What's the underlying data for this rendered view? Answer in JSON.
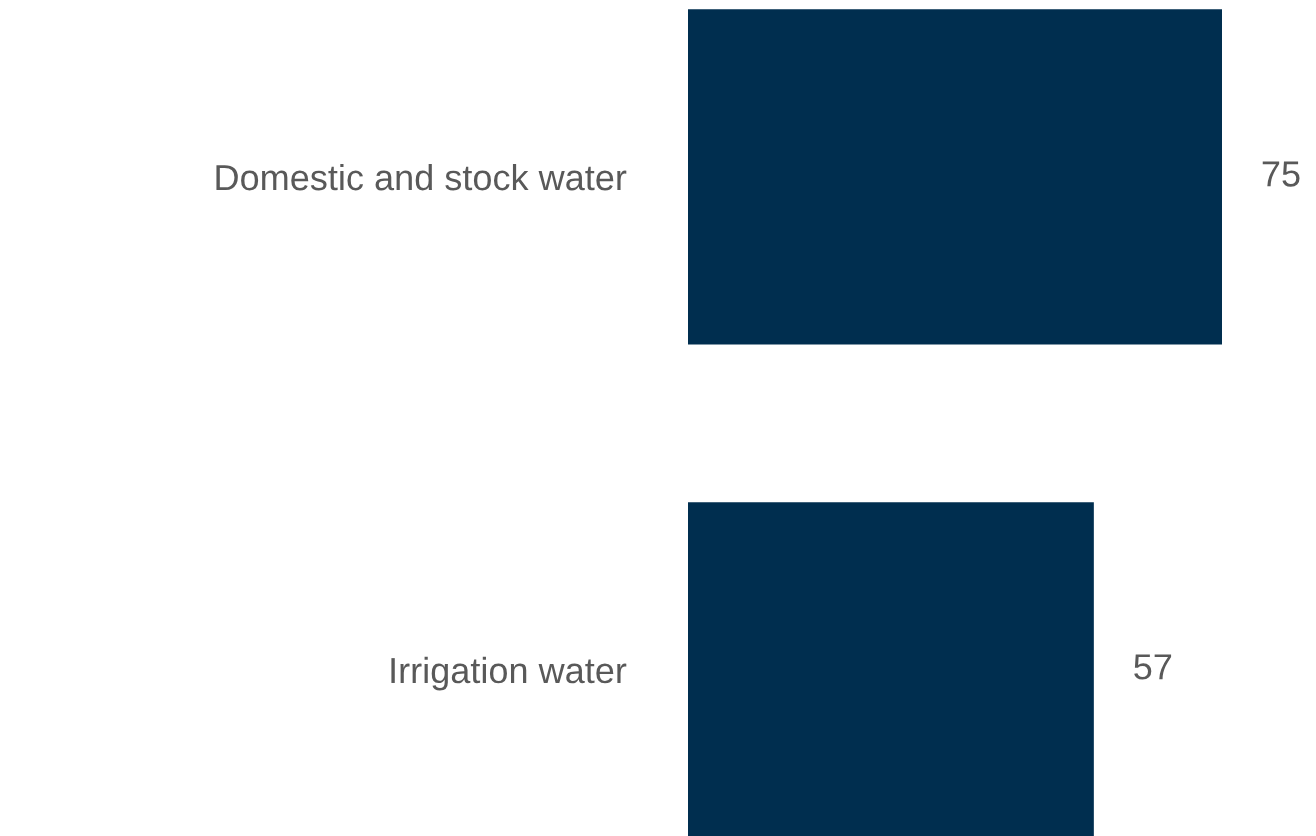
{
  "chart_data": {
    "type": "bar",
    "orientation": "horizontal",
    "categories": [
      "Domestic and stock water",
      "Irrigation water"
    ],
    "values": [
      75,
      57
    ],
    "color": "#002e4f",
    "data_labels": true,
    "grid": false,
    "legend": false
  }
}
